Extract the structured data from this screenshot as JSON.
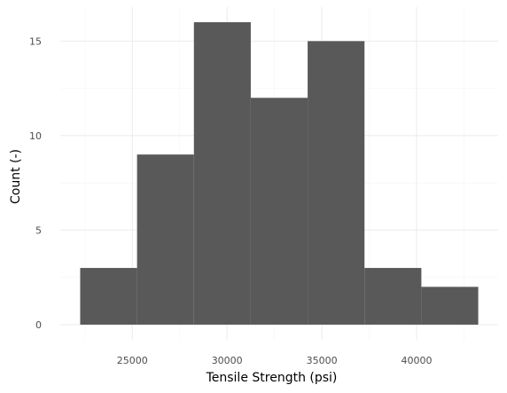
{
  "chart_data": {
    "type": "bar",
    "title": "",
    "xlabel": "Tensile Strength (psi)",
    "ylabel": "Count (-)",
    "bins": [
      {
        "x0": 22250,
        "x1": 25250,
        "count": 3
      },
      {
        "x0": 25250,
        "x1": 28250,
        "count": 9
      },
      {
        "x0": 28250,
        "x1": 31250,
        "count": 16
      },
      {
        "x0": 31250,
        "x1": 34250,
        "count": 12
      },
      {
        "x0": 34250,
        "x1": 37250,
        "count": 15
      },
      {
        "x0": 37250,
        "x1": 40250,
        "count": 3
      },
      {
        "x0": 40250,
        "x1": 43250,
        "count": 2
      }
    ],
    "xlim": [
      21200,
      44300
    ],
    "ylim": [
      -0.8,
      16.8
    ],
    "xticks": [
      25000,
      30000,
      35000,
      40000
    ],
    "xtick_labels": [
      "25000",
      "30000",
      "35000",
      "40000"
    ],
    "yticks": [
      0,
      5,
      10,
      15
    ],
    "ytick_labels": [
      "0",
      "5",
      "10",
      "15"
    ],
    "grid": true,
    "bar_color": "#595959"
  }
}
